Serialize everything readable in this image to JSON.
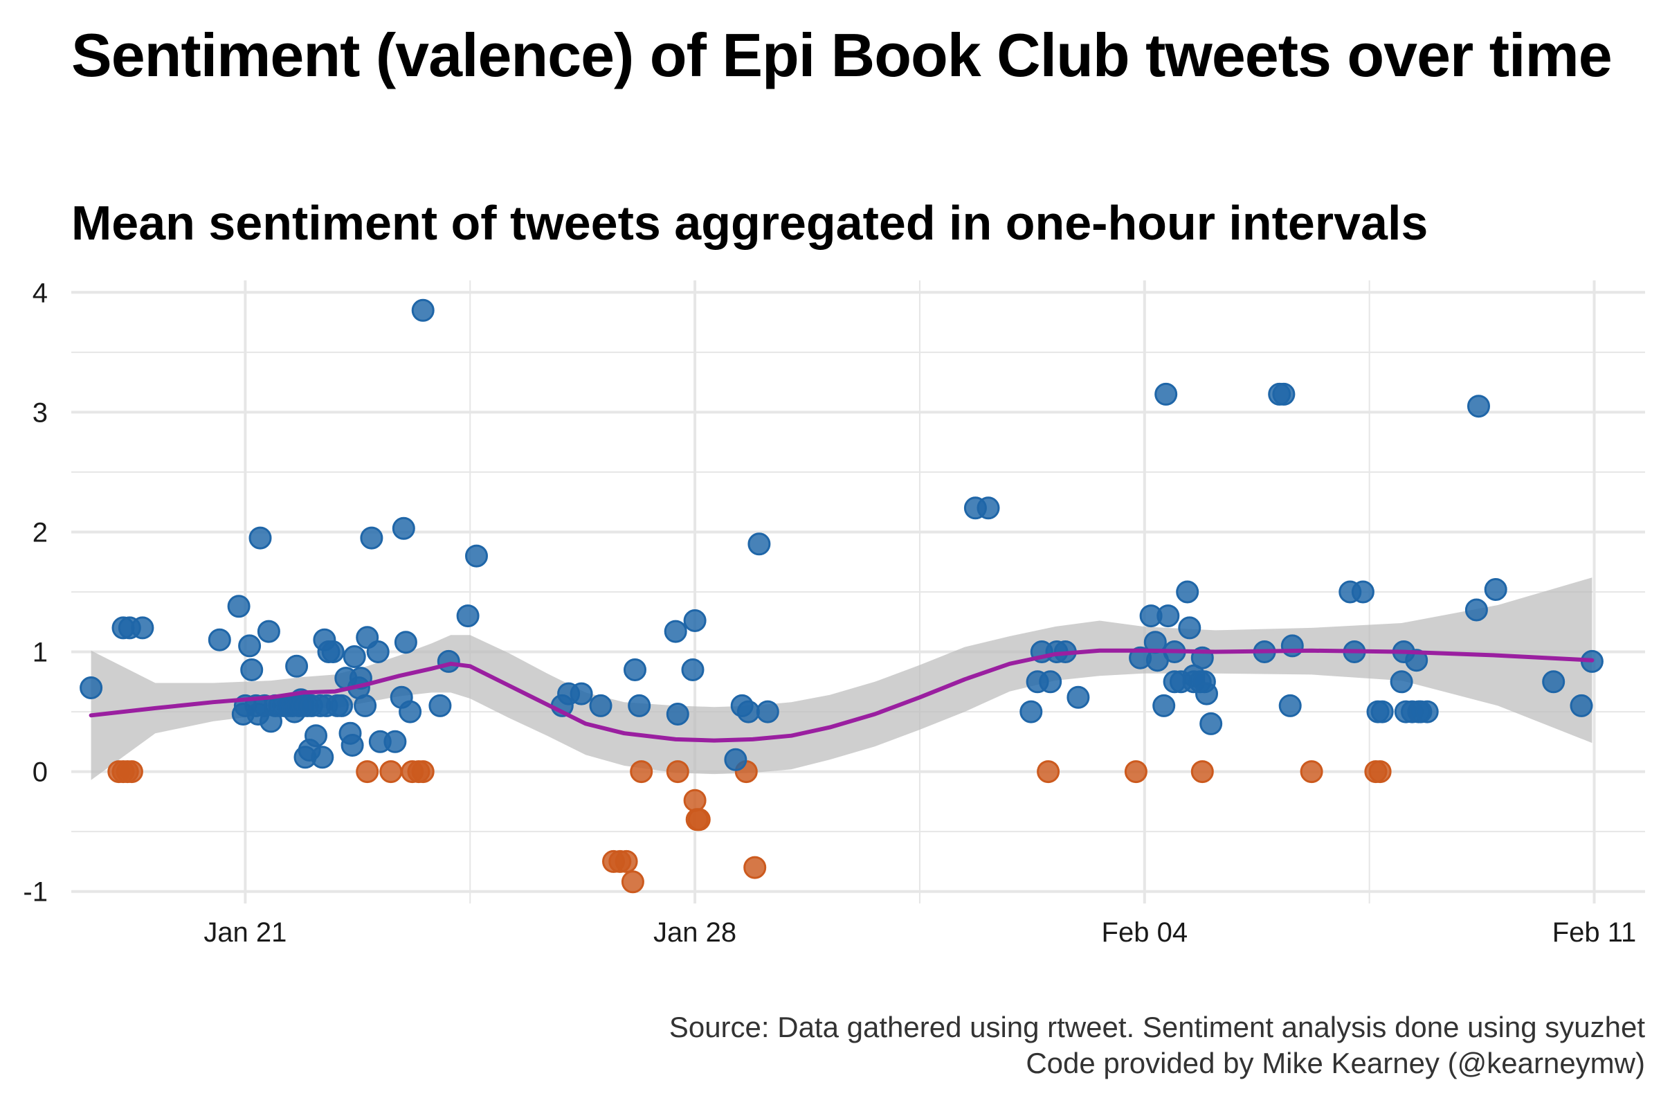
{
  "chart_data": {
    "type": "scatter",
    "title": "Sentiment (valence) of Epi Book Club tweets over time",
    "subtitle": "Mean sentiment of tweets aggregated in one-hour intervals",
    "caption": [
      "Source: Data gathered using rtweet. Sentiment analysis done using syuzhet",
      "Code provided by Mike Kearney (@kearneymw)"
    ],
    "xlabel": "",
    "ylabel": "",
    "x_ticks": [
      "Jan 21",
      "Jan 28",
      "Feb 04",
      "Feb 11"
    ],
    "y_ticks": [
      "-1",
      "0",
      "1",
      "2",
      "3",
      "4"
    ],
    "xlim": [
      "2018-01-18T07:00",
      "2018-02-11T19:00"
    ],
    "ylim": [
      -1.1,
      4.1
    ],
    "grid": true,
    "legend": "none",
    "colors": {
      "positive": "#1f66a8",
      "neutral_negative": "#cc5a1e",
      "smooth": "#9a1fa0",
      "ribbon": "#bdbdbd",
      "grid": "#e6e6e6"
    },
    "positive_points": [
      [
        "2018-01-18T14:24",
        0.7
      ],
      [
        "2018-01-19T02:24",
        1.2
      ],
      [
        "2018-01-19T04:48",
        1.2
      ],
      [
        "2018-01-19T09:36",
        1.2
      ],
      [
        "2018-01-20T14:24",
        1.1
      ],
      [
        "2018-01-20T21:36",
        1.38
      ],
      [
        "2018-01-20T23:12",
        0.48
      ],
      [
        "2018-01-21T00:00",
        0.55
      ],
      [
        "2018-01-21T01:36",
        1.05
      ],
      [
        "2018-01-21T02:24",
        0.85
      ],
      [
        "2018-01-21T04:00",
        0.55
      ],
      [
        "2018-01-21T04:48",
        0.48
      ],
      [
        "2018-01-21T05:36",
        1.95
      ],
      [
        "2018-01-21T07:12",
        0.55
      ],
      [
        "2018-01-21T08:48",
        1.17
      ],
      [
        "2018-01-21T09:36",
        0.42
      ],
      [
        "2018-01-21T11:12",
        0.55
      ],
      [
        "2018-01-21T12:48",
        0.55
      ],
      [
        "2018-01-21T14:24",
        0.55
      ],
      [
        "2018-01-21T16:00",
        0.55
      ],
      [
        "2018-01-21T17:36",
        0.55
      ],
      [
        "2018-01-21T18:24",
        0.5
      ],
      [
        "2018-01-21T19:12",
        0.88
      ],
      [
        "2018-01-21T20:00",
        0.55
      ],
      [
        "2018-01-21T20:48",
        0.6
      ],
      [
        "2018-01-21T21:36",
        0.55
      ],
      [
        "2018-01-21T22:24",
        0.12
      ],
      [
        "2018-01-21T23:12",
        0.55
      ],
      [
        "2018-01-22T00:00",
        0.18
      ],
      [
        "2018-01-22T00:48",
        0.55
      ],
      [
        "2018-01-22T02:24",
        0.3
      ],
      [
        "2018-01-22T04:00",
        0.55
      ],
      [
        "2018-01-22T04:48",
        0.12
      ],
      [
        "2018-01-22T05:36",
        1.1
      ],
      [
        "2018-01-22T06:24",
        0.55
      ],
      [
        "2018-01-22T07:12",
        1.0
      ],
      [
        "2018-01-22T08:48",
        1.0
      ],
      [
        "2018-01-22T10:24",
        0.55
      ],
      [
        "2018-01-22T12:00",
        0.55
      ],
      [
        "2018-01-22T13:36",
        0.78
      ],
      [
        "2018-01-22T15:12",
        0.32
      ],
      [
        "2018-01-22T16:00",
        0.22
      ],
      [
        "2018-01-22T16:48",
        0.96
      ],
      [
        "2018-01-22T18:24",
        0.7
      ],
      [
        "2018-01-22T19:12",
        0.78
      ],
      [
        "2018-01-22T20:48",
        0.55
      ],
      [
        "2018-01-22T21:36",
        1.12
      ],
      [
        "2018-01-22T23:12",
        1.95
      ],
      [
        "2018-01-23T01:36",
        1.0
      ],
      [
        "2018-01-23T02:24",
        0.25
      ],
      [
        "2018-01-23T08:00",
        0.25
      ],
      [
        "2018-01-23T10:24",
        0.62
      ],
      [
        "2018-01-23T11:12",
        2.03
      ],
      [
        "2018-01-23T12:00",
        1.08
      ],
      [
        "2018-01-23T13:36",
        0.5
      ],
      [
        "2018-01-23T18:24",
        3.85
      ],
      [
        "2018-01-24T00:48",
        0.55
      ],
      [
        "2018-01-24T04:00",
        0.92
      ],
      [
        "2018-01-24T11:12",
        1.3
      ],
      [
        "2018-01-24T14:24",
        1.8
      ],
      [
        "2018-01-25T22:24",
        0.55
      ],
      [
        "2018-01-26T00:48",
        0.65
      ],
      [
        "2018-01-26T05:36",
        0.65
      ],
      [
        "2018-01-26T12:48",
        0.55
      ],
      [
        "2018-01-27T01:36",
        0.85
      ],
      [
        "2018-01-27T03:12",
        0.55
      ],
      [
        "2018-01-27T16:48",
        1.17
      ],
      [
        "2018-01-27T17:36",
        0.48
      ],
      [
        "2018-01-27T23:12",
        0.85
      ],
      [
        "2018-01-28T00:00",
        1.26
      ],
      [
        "2018-01-28T15:12",
        0.1
      ],
      [
        "2018-01-28T17:36",
        0.55
      ],
      [
        "2018-01-28T20:00",
        0.5
      ],
      [
        "2018-01-29T00:00",
        1.9
      ],
      [
        "2018-01-29T03:12",
        0.5
      ],
      [
        "2018-02-01T08:48",
        2.2
      ],
      [
        "2018-02-01T13:36",
        2.2
      ],
      [
        "2018-02-02T05:36",
        0.5
      ],
      [
        "2018-02-02T08:00",
        0.75
      ],
      [
        "2018-02-02T09:36",
        1.0
      ],
      [
        "2018-02-02T12:48",
        0.75
      ],
      [
        "2018-02-02T15:12",
        1.0
      ],
      [
        "2018-02-02T18:24",
        1.0
      ],
      [
        "2018-02-02T23:12",
        0.62
      ],
      [
        "2018-02-03T22:24",
        0.95
      ],
      [
        "2018-02-04T02:24",
        1.3
      ],
      [
        "2018-02-04T04:00",
        1.08
      ],
      [
        "2018-02-04T04:48",
        0.93
      ],
      [
        "2018-02-04T07:12",
        0.55
      ],
      [
        "2018-02-04T08:00",
        3.15
      ],
      [
        "2018-02-04T08:48",
        1.3
      ],
      [
        "2018-02-04T11:12",
        1.0
      ],
      [
        "2018-02-04T11:12",
        0.75
      ],
      [
        "2018-02-04T13:36",
        0.75
      ],
      [
        "2018-02-04T16:00",
        1.5
      ],
      [
        "2018-02-04T16:48",
        1.2
      ],
      [
        "2018-02-04T18:24",
        0.8
      ],
      [
        "2018-02-04T18:24",
        0.75
      ],
      [
        "2018-02-04T20:48",
        0.75
      ],
      [
        "2018-02-04T21:36",
        0.95
      ],
      [
        "2018-02-04T22:24",
        0.75
      ],
      [
        "2018-02-04T23:12",
        0.65
      ],
      [
        "2018-02-05T00:48",
        0.4
      ],
      [
        "2018-02-05T20:48",
        1.0
      ],
      [
        "2018-02-06T02:24",
        3.15
      ],
      [
        "2018-02-06T04:00",
        3.15
      ],
      [
        "2018-02-06T06:24",
        0.55
      ],
      [
        "2018-02-06T07:12",
        1.05
      ],
      [
        "2018-02-07T04:48",
        1.5
      ],
      [
        "2018-02-07T06:24",
        1.0
      ],
      [
        "2018-02-07T09:36",
        1.5
      ],
      [
        "2018-02-07T15:12",
        0.5
      ],
      [
        "2018-02-07T16:48",
        0.5
      ],
      [
        "2018-02-08T00:00",
        0.75
      ],
      [
        "2018-02-08T00:48",
        1.0
      ],
      [
        "2018-02-08T01:36",
        0.5
      ],
      [
        "2018-02-08T04:00",
        0.5
      ],
      [
        "2018-02-08T05:36",
        0.93
      ],
      [
        "2018-02-08T06:24",
        0.5
      ],
      [
        "2018-02-08T07:12",
        0.5
      ],
      [
        "2018-02-08T09:36",
        0.5
      ],
      [
        "2018-02-09T04:00",
        1.35
      ],
      [
        "2018-02-09T04:48",
        3.05
      ],
      [
        "2018-02-09T11:12",
        1.52
      ],
      [
        "2018-02-10T08:48",
        0.75
      ],
      [
        "2018-02-10T19:12",
        0.55
      ],
      [
        "2018-02-10T23:12",
        0.92
      ]
    ],
    "nonpositive_points": [
      [
        "2018-01-19T00:48",
        0.0
      ],
      [
        "2018-01-19T02:24",
        0.0
      ],
      [
        "2018-01-19T04:00",
        0.0
      ],
      [
        "2018-01-19T05:36",
        0.0
      ],
      [
        "2018-01-22T21:36",
        0.0
      ],
      [
        "2018-01-23T06:24",
        0.0
      ],
      [
        "2018-01-23T14:24",
        0.0
      ],
      [
        "2018-01-23T16:48",
        0.0
      ],
      [
        "2018-01-23T18:24",
        0.0
      ],
      [
        "2018-01-26T17:36",
        -0.75
      ],
      [
        "2018-01-26T20:00",
        -0.75
      ],
      [
        "2018-01-26T22:24",
        -0.75
      ],
      [
        "2018-01-27T00:48",
        -0.92
      ],
      [
        "2018-01-27T04:00",
        0.0
      ],
      [
        "2018-01-27T17:36",
        0.0
      ],
      [
        "2018-01-28T00:00",
        -0.24
      ],
      [
        "2018-01-28T00:48",
        -0.4
      ],
      [
        "2018-01-28T01:36",
        -0.4
      ],
      [
        "2018-01-28T19:12",
        0.0
      ],
      [
        "2018-01-28T22:24",
        -0.8
      ],
      [
        "2018-02-02T12:00",
        0.0
      ],
      [
        "2018-02-03T20:48",
        0.0
      ],
      [
        "2018-02-04T21:36",
        0.0
      ],
      [
        "2018-02-06T14:24",
        0.0
      ],
      [
        "2018-02-07T14:24",
        0.0
      ],
      [
        "2018-02-07T16:00",
        0.0
      ]
    ],
    "smooth": {
      "x": [
        "2018-01-18T14:24",
        "2018-01-19T14:24",
        "2018-01-20T12:00",
        "2018-01-21T09:36",
        "2018-01-21T21:36",
        "2018-01-22T09:36",
        "2018-01-22T21:36",
        "2018-01-23T09:36",
        "2018-01-23T21:36",
        "2018-01-24T04:48",
        "2018-01-24T12:00",
        "2018-01-25T02:24",
        "2018-01-25T16:48",
        "2018-01-26T07:12",
        "2018-01-26T21:36",
        "2018-01-27T16:48",
        "2018-01-28T07:12",
        "2018-01-28T21:36",
        "2018-01-29T12:00",
        "2018-01-30T02:24",
        "2018-01-30T19:12",
        "2018-01-31T12:00",
        "2018-02-01T04:48",
        "2018-02-01T21:36",
        "2018-02-02T14:24",
        "2018-02-03T07:12",
        "2018-02-04T00:00",
        "2018-02-05T02:24",
        "2018-02-06T14:24",
        "2018-02-08T00:00",
        "2018-02-09T12:00",
        "2018-02-10T23:12"
      ],
      "y": [
        0.47,
        0.53,
        0.58,
        0.62,
        0.66,
        0.67,
        0.73,
        0.8,
        0.86,
        0.9,
        0.88,
        0.72,
        0.56,
        0.4,
        0.32,
        0.27,
        0.26,
        0.27,
        0.3,
        0.37,
        0.48,
        0.62,
        0.77,
        0.9,
        0.98,
        1.01,
        1.01,
        1.0,
        1.01,
        1.0,
        0.97,
        0.93
      ],
      "lower": [
        -0.07,
        0.32,
        0.42,
        0.48,
        0.53,
        0.53,
        0.58,
        0.63,
        0.66,
        0.66,
        0.61,
        0.45,
        0.3,
        0.14,
        0.05,
        -0.01,
        -0.02,
        -0.01,
        0.02,
        0.1,
        0.21,
        0.35,
        0.5,
        0.67,
        0.76,
        0.8,
        0.82,
        0.82,
        0.81,
        0.76,
        0.55,
        0.24
      ],
      "upper": [
        1.01,
        0.74,
        0.74,
        0.76,
        0.79,
        0.81,
        0.88,
        0.97,
        1.07,
        1.14,
        1.14,
        0.99,
        0.82,
        0.66,
        0.58,
        0.55,
        0.54,
        0.55,
        0.58,
        0.64,
        0.75,
        0.89,
        1.04,
        1.13,
        1.21,
        1.26,
        1.21,
        1.18,
        1.2,
        1.24,
        1.39,
        1.62
      ]
    }
  }
}
